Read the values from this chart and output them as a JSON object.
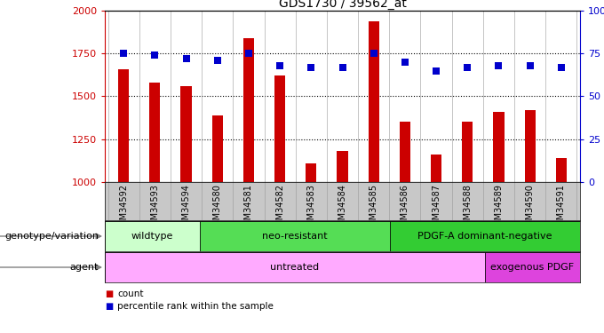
{
  "title": "GDS1730 / 39562_at",
  "samples": [
    "GSM34592",
    "GSM34593",
    "GSM34594",
    "GSM34580",
    "GSM34581",
    "GSM34582",
    "GSM34583",
    "GSM34584",
    "GSM34585",
    "GSM34586",
    "GSM34587",
    "GSM34588",
    "GSM34589",
    "GSM34590",
    "GSM34591"
  ],
  "counts": [
    1660,
    1580,
    1560,
    1390,
    1840,
    1620,
    1110,
    1180,
    1940,
    1350,
    1160,
    1350,
    1410,
    1420,
    1140
  ],
  "percentile": [
    75,
    74,
    72,
    71,
    75,
    68,
    67,
    67,
    75,
    70,
    65,
    67,
    68,
    68,
    67
  ],
  "ylim_left": [
    1000,
    2000
  ],
  "ylim_right": [
    0,
    100
  ],
  "yticks_left": [
    1000,
    1250,
    1500,
    1750,
    2000
  ],
  "yticks_right": [
    0,
    25,
    50,
    75,
    100
  ],
  "bar_color": "#cc0000",
  "dot_color": "#0000cc",
  "background_color": "#ffffff",
  "xtick_bg_color": "#c8c8c8",
  "genotype_groups": [
    {
      "label": "wildtype",
      "start": 0,
      "end": 3,
      "color": "#ccffcc"
    },
    {
      "label": "neo-resistant",
      "start": 3,
      "end": 9,
      "color": "#55dd55"
    },
    {
      "label": "PDGF-A dominant-negative",
      "start": 9,
      "end": 15,
      "color": "#33cc33"
    }
  ],
  "agent_groups": [
    {
      "label": "untreated",
      "start": 0,
      "end": 12,
      "color": "#ffaaff"
    },
    {
      "label": "exogenous PDGF",
      "start": 12,
      "end": 15,
      "color": "#dd44dd"
    }
  ],
  "tick_label_color": "#cc0000",
  "right_tick_color": "#0000cc",
  "legend_items": [
    {
      "label": "count",
      "color": "#cc0000"
    },
    {
      "label": "percentile rank within the sample",
      "color": "#0000cc"
    }
  ],
  "genotype_label": "genotype/variation",
  "agent_label": "agent",
  "xticklabel_fontsize": 7,
  "bar_width": 0.35,
  "dot_size": 35
}
